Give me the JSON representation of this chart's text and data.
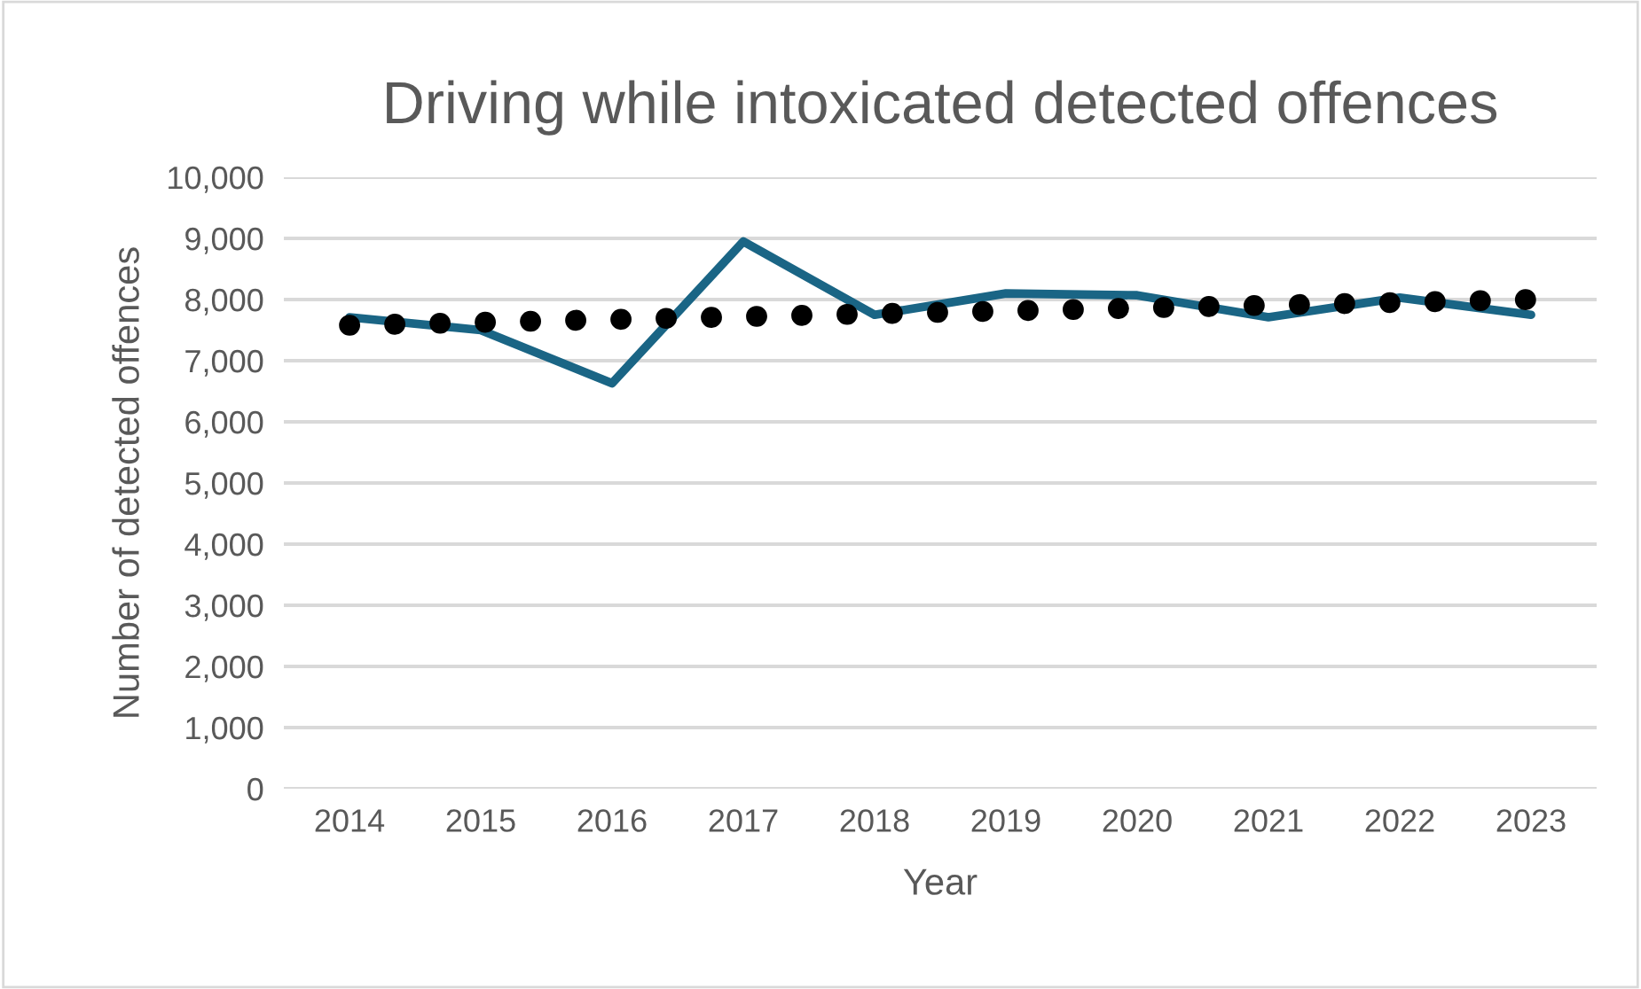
{
  "chart_data": {
    "type": "line",
    "title": "Driving while intoxicated detected offences",
    "xlabel": "Year",
    "ylabel": "Number of detected offences",
    "x": [
      2014,
      2015,
      2016,
      2017,
      2018,
      2019,
      2020,
      2021,
      2022,
      2023
    ],
    "series": [
      {
        "color": "#1a6585",
        "values": [
          7710,
          7500,
          6630,
          8950,
          7750,
          8100,
          8070,
          7710,
          8030,
          7750
        ]
      },
      {
        "type": "line",
        "x": [
          2014,
          2023
        ],
        "values": [
          7580,
          8000
        ],
        "color": "#000000",
        "line_style": "dotted"
      }
    ],
    "xlim": [
      2013.5,
      2023.5
    ],
    "xticks": [
      2014,
      2015,
      2016,
      2017,
      2018,
      2019,
      2020,
      2021,
      2022,
      2023
    ],
    "ylim": [
      0,
      10000
    ],
    "yticks": [
      {
        "value": 0,
        "label": "0"
      },
      {
        "value": 1000,
        "label": "1,000"
      },
      {
        "value": 2000,
        "label": "2,000"
      },
      {
        "value": 3000,
        "label": "3,000"
      },
      {
        "value": 4000,
        "label": "4,000"
      },
      {
        "value": 5000,
        "label": "5,000"
      },
      {
        "value": 6000,
        "label": "6,000"
      },
      {
        "value": 7000,
        "label": "7,000"
      },
      {
        "value": 8000,
        "label": "8,000"
      },
      {
        "value": 9000,
        "label": "9,000"
      },
      {
        "value": 10000,
        "label": "10,000"
      }
    ],
    "grid": "y",
    "marker": "none",
    "line_style": "solid"
  }
}
